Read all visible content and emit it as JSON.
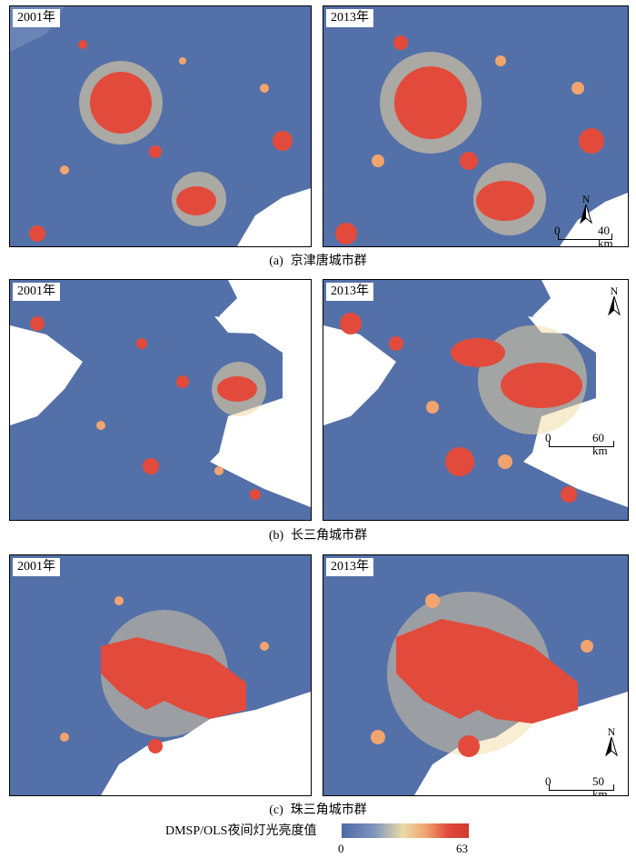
{
  "panels": [
    {
      "year_label": "2001年"
    },
    {
      "year_label": "2013年"
    },
    {
      "year_label": "2001年"
    },
    {
      "year_label": "2013年"
    },
    {
      "year_label": "2001年"
    },
    {
      "year_label": "2013年"
    }
  ],
  "captions": {
    "a": {
      "tag": "(a)",
      "name": "京津唐城市群"
    },
    "b": {
      "tag": "(b)",
      "name": "长三角城市群"
    },
    "c": {
      "tag": "(c)",
      "name": "珠三角城市群"
    }
  },
  "scalebars": {
    "a": {
      "zero": "0",
      "dist": "40 km"
    },
    "b": {
      "zero": "0",
      "dist": "60 km"
    },
    "c": {
      "zero": "0",
      "dist": "50 km"
    }
  },
  "north_label": "N",
  "legend": {
    "title": "DMSP/OLS夜间灯光亮度值",
    "min": "0",
    "max": "63",
    "colors": [
      "#4d6aa6",
      "#7c93bd",
      "#e9dba7",
      "#f2a46f",
      "#e0483a",
      "#cf3b31"
    ]
  }
}
